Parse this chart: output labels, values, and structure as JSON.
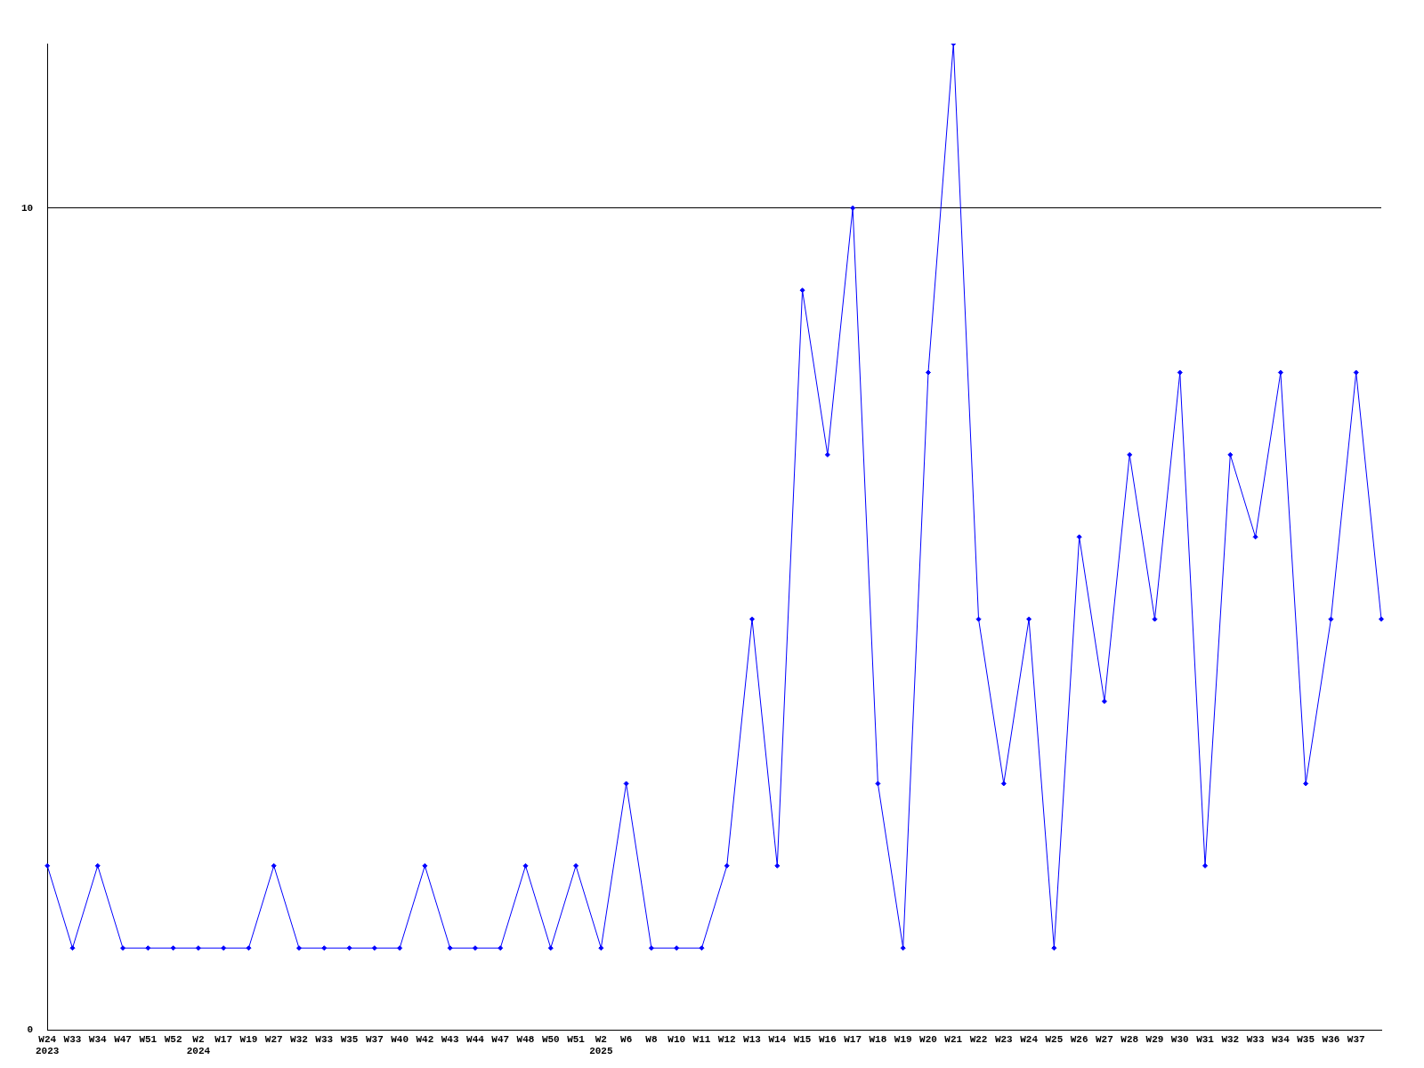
{
  "chart_data": {
    "type": "line",
    "categories": [
      "W24\n2023",
      "W33",
      "W34",
      "W47",
      "W51",
      "W52",
      "W2\n2024",
      "W17",
      "W19",
      "W27",
      "W32",
      "W33",
      "W35",
      "W37",
      "W40",
      "W42",
      "W43",
      "W44",
      "W47",
      "W48",
      "W50",
      "W51",
      "W2\n2025",
      "W6",
      "W8",
      "W10",
      "W11",
      "W12",
      "W13",
      "W14",
      "W15",
      "W16",
      "W17",
      "W18",
      "W19",
      "W20",
      "W21",
      "W22",
      "W23",
      "W24",
      "W25",
      "W26",
      "W27",
      "W28",
      "W29",
      "W30",
      "W31",
      "W32",
      "W33",
      "W34",
      "W35",
      "W36",
      "W37",
      null
    ],
    "values": [
      2,
      1,
      2,
      1,
      1,
      1,
      1,
      1,
      1,
      2,
      1,
      1,
      1,
      1,
      1,
      2,
      1,
      1,
      1,
      2,
      1,
      2,
      1,
      3,
      1,
      1,
      1,
      2,
      5,
      2,
      9,
      7,
      10,
      3,
      1,
      8,
      12,
      5,
      3,
      5,
      1,
      6,
      4,
      7,
      5,
      8,
      2,
      7,
      6,
      8,
      3,
      5,
      8,
      5
    ],
    "color": "#0000ff",
    "ylim": [
      0,
      12
    ],
    "yticks": [
      0,
      10
    ],
    "grid": "y",
    "marker": "diamond"
  }
}
